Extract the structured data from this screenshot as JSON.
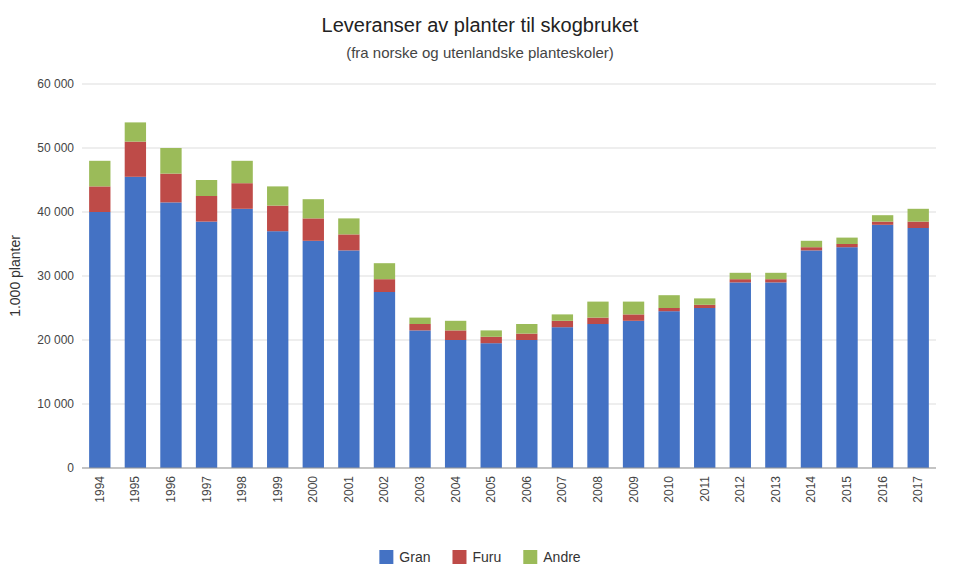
{
  "chart_data": {
    "type": "bar",
    "stacked": true,
    "title": "Leveranser av planter til skogbruket",
    "subtitle": "(fra norske og utenlandske planteskoler)",
    "y_label": "1.000 planter",
    "categories": [
      "1994",
      "1995",
      "1996",
      "1997",
      "1998",
      "1999",
      "2000",
      "2001",
      "2002",
      "2003",
      "2004",
      "2005",
      "2006",
      "2007",
      "2008",
      "2009",
      "2010",
      "2011",
      "2012",
      "2013",
      "2014",
      "2015",
      "2016",
      "2017"
    ],
    "series": [
      {
        "name": "Gran",
        "color": "#4472C4",
        "values": [
          40000,
          45500,
          41500,
          38500,
          40500,
          37000,
          35500,
          34000,
          27500,
          21500,
          20000,
          19500,
          20000,
          22000,
          22500,
          23000,
          24500,
          25000,
          29000,
          29000,
          34000,
          34500,
          38000,
          37500
        ]
      },
      {
        "name": "Furu",
        "color": "#BE4B48",
        "values": [
          4000,
          5500,
          4500,
          4000,
          4000,
          4000,
          3500,
          2500,
          2000,
          1000,
          1500,
          1000,
          1000,
          1000,
          1000,
          1000,
          500,
          500,
          500,
          500,
          500,
          500,
          500,
          1000
        ]
      },
      {
        "name": "Andre",
        "color": "#9BBB59",
        "values": [
          4000,
          3000,
          4000,
          2500,
          3500,
          3000,
          3000,
          2500,
          2500,
          1000,
          1500,
          1000,
          1500,
          1000,
          2500,
          2000,
          2000,
          1000,
          1000,
          1000,
          1000,
          1000,
          1000,
          2000
        ]
      }
    ],
    "ylim": [
      0,
      60000
    ],
    "yticks": [
      0,
      {
        "value": 10000,
        "label": "10 000"
      },
      {
        "value": 20000,
        "label": "20 000"
      },
      {
        "value": 30000,
        "label": "30 000"
      },
      {
        "value": 40000,
        "label": "40 000"
      },
      {
        "value": 50000,
        "label": "50 000"
      },
      {
        "value": 60000,
        "label": "60 000"
      }
    ],
    "grid": true,
    "legend": "bottom"
  }
}
